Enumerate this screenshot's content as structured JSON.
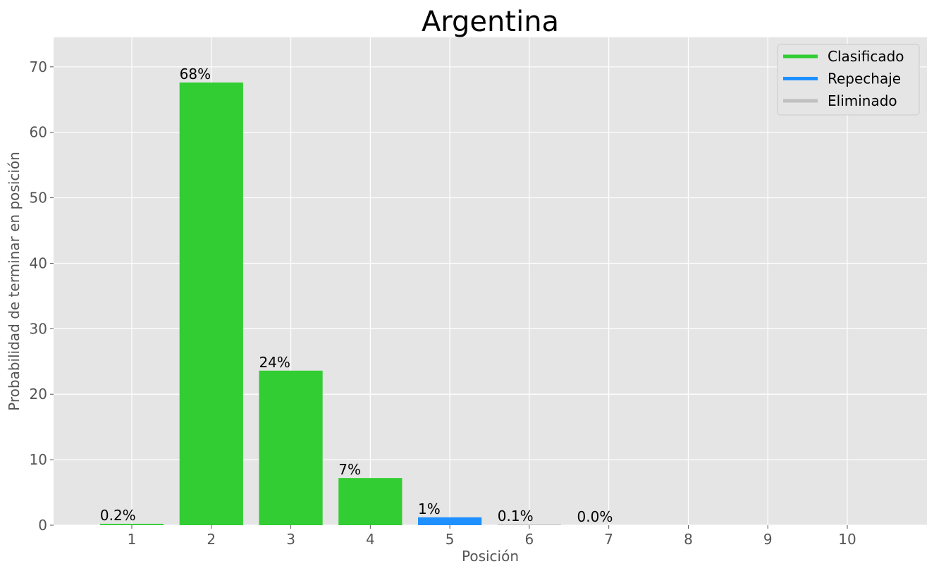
{
  "chart_data": {
    "type": "bar",
    "title": "Argentina",
    "xlabel": "Posición",
    "ylabel": "Probabilidad de terminar en posición",
    "categories": [
      "1",
      "2",
      "3",
      "4",
      "5",
      "6",
      "7",
      "8",
      "9",
      "10"
    ],
    "values": [
      0.2,
      67.6,
      23.6,
      7.2,
      1.2,
      0.1,
      0.0,
      0,
      0,
      0
    ],
    "bar_labels": [
      "0.2%",
      "68%",
      "24%",
      "7%",
      "1%",
      "0.1%",
      "0.0%",
      "",
      "",
      ""
    ],
    "bar_status": [
      "Clasificado",
      "Clasificado",
      "Clasificado",
      "Clasificado",
      "Repechaje",
      "Eliminado",
      "Eliminado",
      "Eliminado",
      "Eliminado",
      "Eliminado"
    ],
    "ylim": [
      0,
      74.5
    ],
    "yticks": [
      0,
      10,
      20,
      30,
      40,
      50,
      60,
      70
    ],
    "grid": true,
    "legend_position": "top-right",
    "legend": [
      {
        "name": "Clasificado",
        "color": "#32cd32"
      },
      {
        "name": "Repechaje",
        "color": "#1e90ff"
      },
      {
        "name": "Eliminado",
        "color": "#c0c0c0"
      }
    ]
  },
  "colors": {
    "plot_background": "#e5e5e5",
    "grid": "#ffffff",
    "tick_text": "#555555"
  }
}
